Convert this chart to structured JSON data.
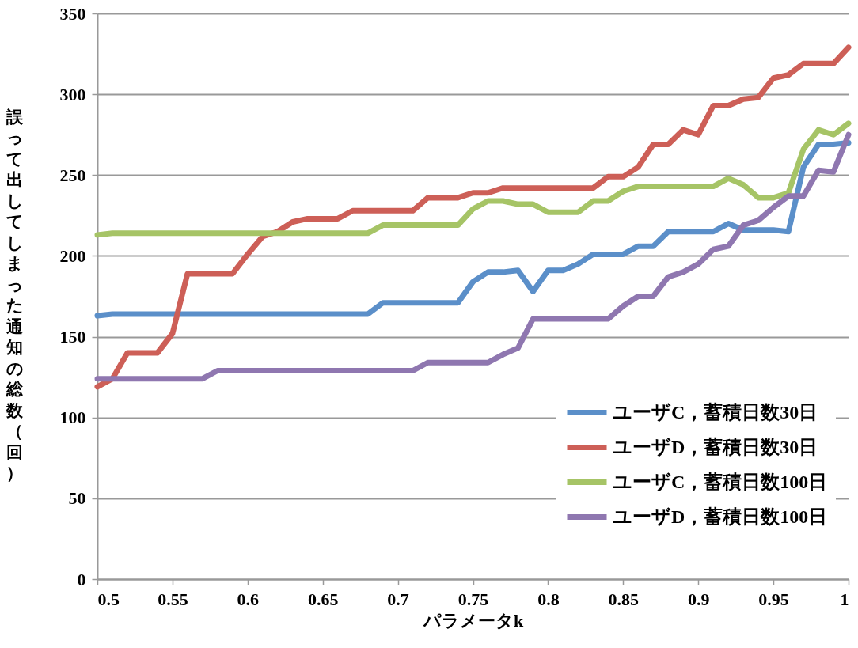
{
  "chart_data": {
    "type": "line",
    "xlabel": "パラメータk",
    "ylabel": "誤って出してしまった通知の総数（回）",
    "x": [
      0.5,
      0.51,
      0.52,
      0.53,
      0.54,
      0.55,
      0.56,
      0.57,
      0.58,
      0.59,
      0.6,
      0.61,
      0.62,
      0.63,
      0.64,
      0.65,
      0.66,
      0.67,
      0.68,
      0.69,
      0.7,
      0.71,
      0.72,
      0.73,
      0.74,
      0.75,
      0.76,
      0.77,
      0.78,
      0.79,
      0.8,
      0.81,
      0.82,
      0.83,
      0.84,
      0.85,
      0.86,
      0.87,
      0.88,
      0.89,
      0.9,
      0.91,
      0.92,
      0.93,
      0.94,
      0.95,
      0.96,
      0.97,
      0.98,
      0.99,
      1
    ],
    "series": [
      {
        "name": "ユーザC，蓄積日数30日",
        "color": "#5b8fc9",
        "values": [
          163,
          164,
          164,
          164,
          164,
          164,
          164,
          164,
          164,
          164,
          164,
          164,
          164,
          164,
          164,
          164,
          164,
          164,
          164,
          171,
          171,
          171,
          171,
          171,
          171,
          184,
          190,
          190,
          191,
          178,
          191,
          191,
          195,
          201,
          201,
          201,
          206,
          206,
          215,
          215,
          215,
          215,
          220,
          216,
          216,
          216,
          215,
          255,
          269,
          269,
          270
        ]
      },
      {
        "name": "ユーザD，蓄積日数30日",
        "color": "#cd5f57",
        "values": [
          119,
          124,
          140,
          140,
          140,
          152,
          189,
          189,
          189,
          189,
          201,
          212,
          215,
          221,
          223,
          223,
          223,
          228,
          228,
          228,
          228,
          228,
          236,
          236,
          236,
          239,
          239,
          242,
          242,
          242,
          242,
          242,
          242,
          242,
          249,
          249,
          255,
          269,
          269,
          278,
          275,
          293,
          293,
          297,
          298,
          310,
          312,
          319,
          319,
          319,
          329
        ]
      },
      {
        "name": "ユーザC，蓄積日数100日",
        "color": "#a6c466",
        "values": [
          213,
          214,
          214,
          214,
          214,
          214,
          214,
          214,
          214,
          214,
          214,
          214,
          214,
          214,
          214,
          214,
          214,
          214,
          214,
          219,
          219,
          219,
          219,
          219,
          219,
          229,
          234,
          234,
          232,
          232,
          227,
          227,
          227,
          234,
          234,
          240,
          243,
          243,
          243,
          243,
          243,
          243,
          248,
          244,
          236,
          236,
          239,
          266,
          278,
          275,
          282
        ]
      },
      {
        "name": "ユーザD，蓄積日数100日",
        "color": "#8f77b0",
        "values": [
          124,
          124,
          124,
          124,
          124,
          124,
          124,
          124,
          129,
          129,
          129,
          129,
          129,
          129,
          129,
          129,
          129,
          129,
          129,
          129,
          129,
          129,
          134,
          134,
          134,
          134,
          134,
          139,
          143,
          161,
          161,
          161,
          161,
          161,
          161,
          169,
          175,
          175,
          187,
          190,
          195,
          204,
          206,
          219,
          222,
          230,
          237,
          237,
          253,
          252,
          275
        ]
      }
    ],
    "xlim": [
      0.5,
      1
    ],
    "xticks": [
      0.5,
      0.55,
      0.6,
      0.65,
      0.7,
      0.75,
      0.8,
      0.85,
      0.9,
      0.95,
      1
    ],
    "ylim": [
      0,
      350
    ],
    "yticks": [
      0,
      50,
      100,
      150,
      200,
      250,
      300,
      350
    ],
    "grid": "y",
    "legend": "bottom right"
  }
}
